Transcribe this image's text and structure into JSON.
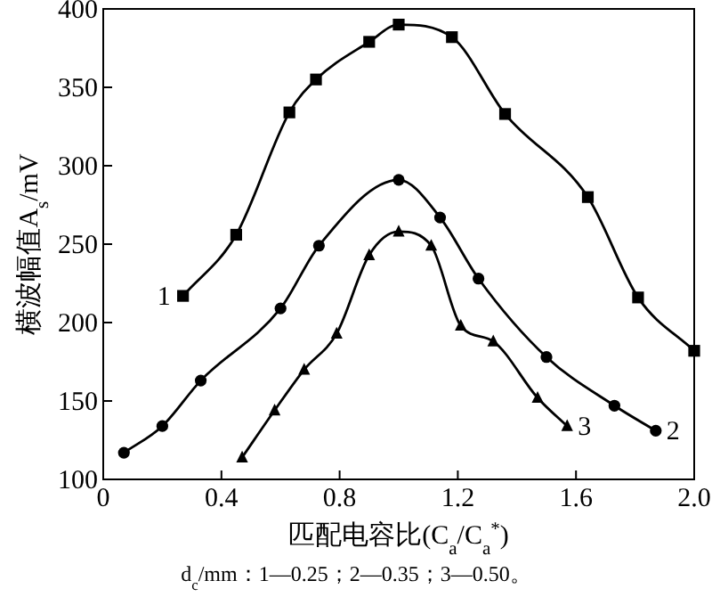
{
  "chart_data": {
    "type": "line",
    "xlabel": "匹配电容比(C$_{a}$/C$_{a}$$^{*}$)",
    "ylabel": "横波幅值A$_{s}$/mV",
    "xlim": [
      0,
      2.0
    ],
    "ylim": [
      100,
      400
    ],
    "xticks": [
      0,
      0.4,
      0.8,
      1.2,
      1.6,
      {
        "value": 2,
        "label": "2.0"
      }
    ],
    "yticks": [
      100,
      150,
      200,
      250,
      300,
      350,
      400
    ],
    "grid": false,
    "line_style": "solid",
    "series": [
      {
        "name": "1",
        "color": "#000000",
        "marker": "square",
        "x": [
          0.27,
          0.45,
          0.63,
          0.72,
          0.9,
          1.0,
          1.18,
          1.36,
          1.64,
          1.81,
          2.0
        ],
        "values": [
          217,
          256,
          334,
          355,
          379,
          390,
          382,
          333,
          280,
          216,
          182
        ]
      },
      {
        "name": "2",
        "color": "#000000",
        "marker": "circle",
        "x": [
          0.07,
          0.2,
          0.33,
          0.6,
          0.73,
          1.0,
          1.14,
          1.27,
          1.5,
          1.73,
          1.87
        ],
        "values": [
          117,
          134,
          163,
          209,
          249,
          291,
          267,
          228,
          178,
          147,
          131
        ]
      },
      {
        "name": "3",
        "color": "#000000",
        "marker": "triangle",
        "x": [
          0.47,
          0.58,
          0.68,
          0.79,
          0.9,
          1.0,
          1.11,
          1.21,
          1.32,
          1.47,
          1.57
        ],
        "values": [
          114,
          144,
          170,
          193,
          243,
          258,
          249,
          198,
          188,
          152,
          134
        ]
      }
    ],
    "annotations": [
      "d$_{c}$/mm：1—0.25；2—0.35；3—0.50。"
    ]
  }
}
